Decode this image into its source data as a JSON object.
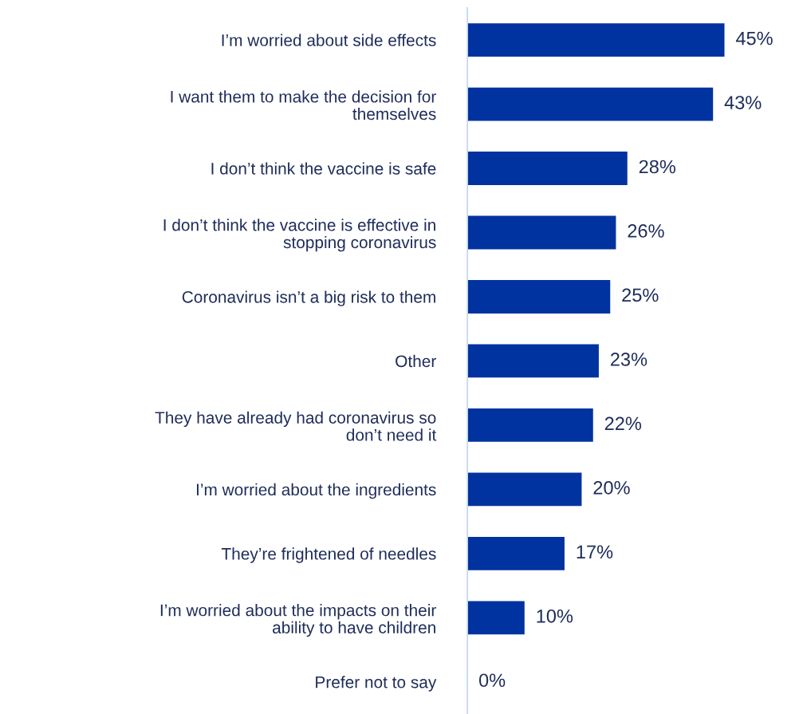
{
  "chart_data": {
    "type": "bar",
    "orientation": "horizontal",
    "categories": [
      "I’m worried about side effects",
      "I want them to make the decision for\nthemselves",
      "I don’t think the vaccine is safe",
      "I don’t think the vaccine is effective in\nstopping coronavirus",
      "Coronavirus isn’t a big risk to them",
      "Other",
      "They have already had coronavirus so\ndon’t need it",
      "I’m worried about the ingredients",
      "They’re frightened of needles",
      "I’m worried about the impacts on their\nability to have children",
      "Prefer not to say"
    ],
    "values": [
      45,
      43,
      28,
      26,
      25,
      23,
      22,
      20,
      17,
      10,
      0
    ],
    "color": "#0033a0",
    "value_labels": [
      "45%",
      "43%",
      "28%",
      "26%",
      "25%",
      "23%",
      "22%",
      "20%",
      "17%",
      "10%",
      "0%"
    ],
    "grid": false,
    "legend": false,
    "tick_labels": "y"
  }
}
